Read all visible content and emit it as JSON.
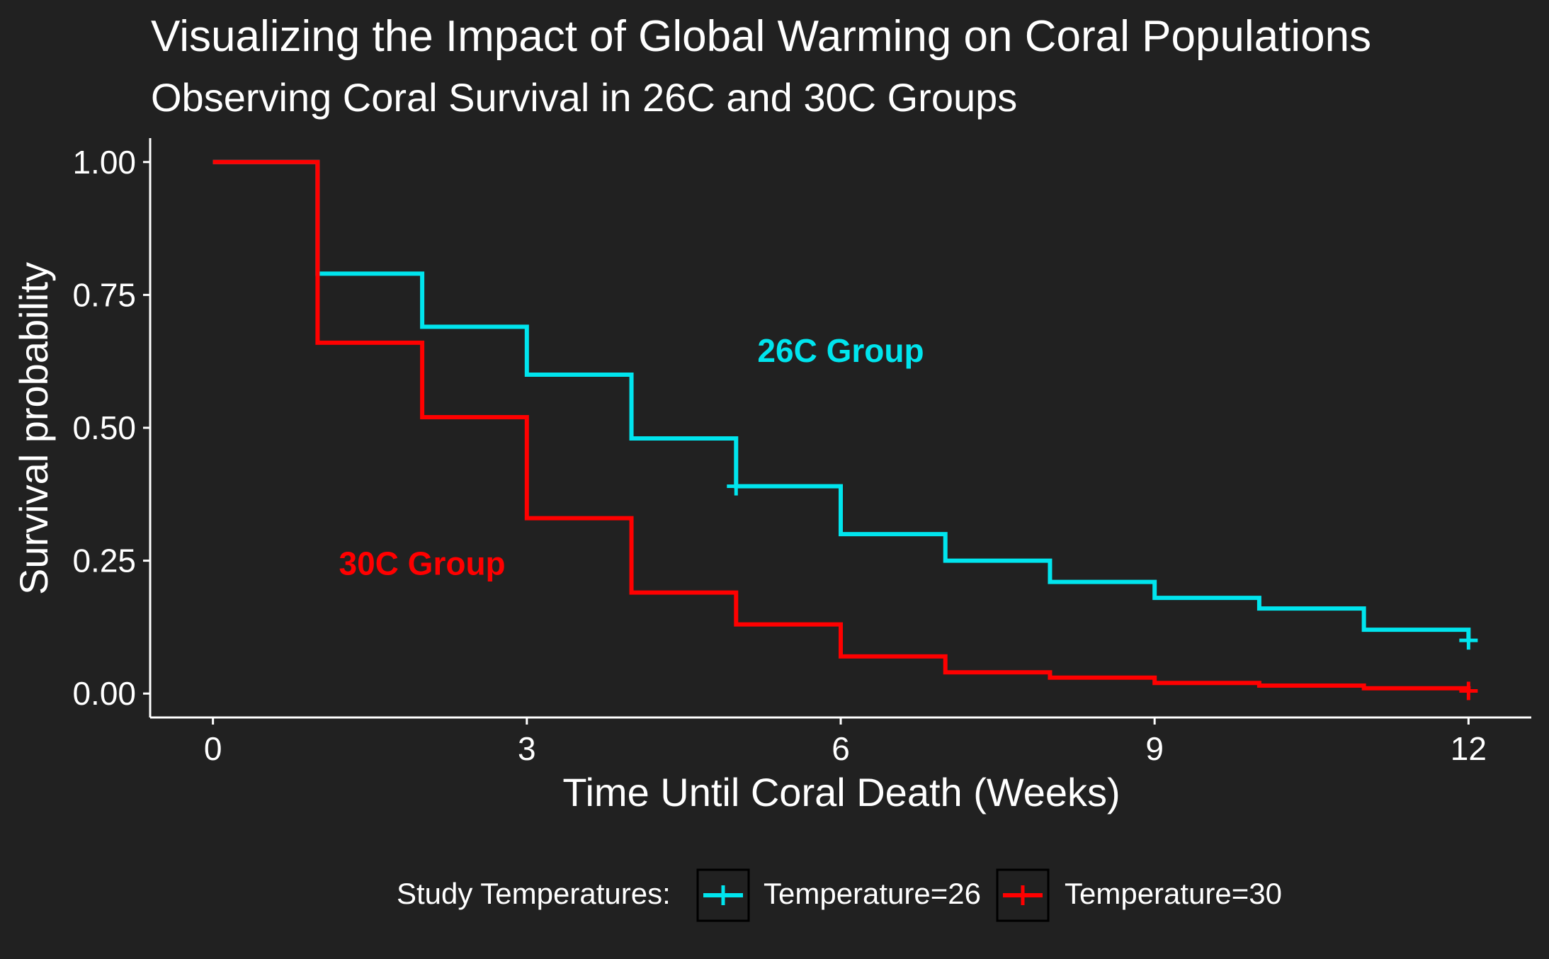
{
  "chart_data": {
    "type": "line",
    "title": "Visualizing the Impact of Global Warming on Coral Populations",
    "subtitle": "Observing Coral Survival in 26C and 30C Groups",
    "xlabel": "Time Until Coral Death (Weeks)",
    "ylabel": "Survival probability",
    "xlim": [
      -0.6,
      12.6
    ],
    "ylim": [
      -0.045,
      1.045
    ],
    "x_ticks": [
      0,
      3,
      6,
      9,
      12
    ],
    "x_tick_labels": [
      "0",
      "3",
      "6",
      "9",
      "12"
    ],
    "y_ticks": [
      0,
      0.25,
      0.5,
      0.75,
      1
    ],
    "y_tick_labels": [
      "0.00",
      "0.25",
      "0.50",
      "0.75",
      "1.00"
    ],
    "grid": false,
    "step": true,
    "legend": {
      "title": "Study Temperatures:",
      "position": "bottom",
      "entries": [
        "Temperature=26",
        "Temperature=30"
      ]
    },
    "series": [
      {
        "name": "Temperature=26",
        "color": "#00E5EE",
        "x": [
          0,
          1,
          2,
          3,
          4,
          5,
          6,
          7,
          8,
          9,
          10,
          11,
          12
        ],
        "y": [
          1.0,
          0.79,
          0.69,
          0.6,
          0.48,
          0.39,
          0.3,
          0.25,
          0.21,
          0.18,
          0.16,
          0.12,
          0.1
        ],
        "censored": [
          {
            "x": 5,
            "y": 0.39
          },
          {
            "x": 12,
            "y": 0.1
          }
        ]
      },
      {
        "name": "Temperature=30",
        "color": "#FF0000",
        "x": [
          0,
          1,
          2,
          3,
          4,
          5,
          6,
          7,
          8,
          9,
          10,
          11,
          12
        ],
        "y": [
          1.0,
          0.66,
          0.52,
          0.33,
          0.19,
          0.13,
          0.07,
          0.04,
          0.03,
          0.02,
          0.015,
          0.01,
          0.005
        ],
        "censored": [
          {
            "x": 12,
            "y": 0.005
          }
        ]
      }
    ],
    "annotations": [
      {
        "text": "26C Group",
        "x": 6.0,
        "y": 0.645,
        "color": "#00E5EE"
      },
      {
        "text": "30C Group",
        "x": 2.0,
        "y": 0.245,
        "color": "#FF0000"
      }
    ]
  }
}
